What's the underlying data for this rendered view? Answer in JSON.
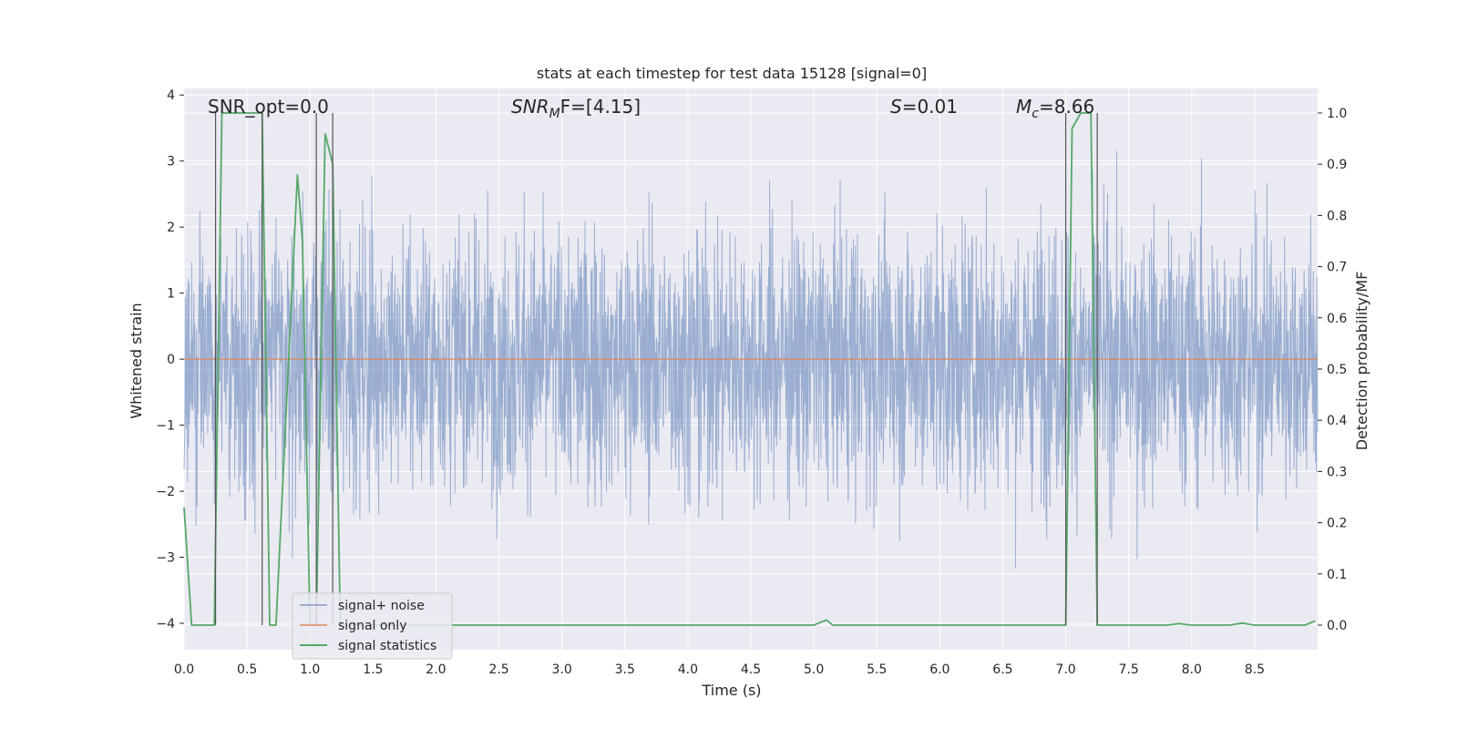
{
  "chart_data": {
    "type": "line",
    "title": "stats at each timestep for test data 15128 [signal=0]",
    "xlabel": "Time (s)",
    "ylabel": "Whitened strain",
    "ylabel_right": "Detection probability/MF",
    "xlim": [
      0.0,
      9.0
    ],
    "ylim": [
      -4.4,
      4.1
    ],
    "ylim_right": [
      -0.048,
      1.048
    ],
    "x_ticks": [
      "0.0",
      "0.5",
      "1.0",
      "1.5",
      "2.0",
      "2.5",
      "3.0",
      "3.5",
      "4.0",
      "4.5",
      "5.0",
      "5.5",
      "6.0",
      "6.5",
      "7.0",
      "7.5",
      "8.0",
      "8.5"
    ],
    "y_ticks": [
      "4",
      "3",
      "2",
      "1",
      "0",
      "−1",
      "−2",
      "−3",
      "−4"
    ],
    "y_ticks_right": [
      "1.0",
      "0.9",
      "0.8",
      "0.7",
      "0.6",
      "0.5",
      "0.4",
      "0.3",
      "0.2",
      "0.1",
      "0.0"
    ],
    "grid": true,
    "legend_position": "lower-left",
    "annotations": [
      {
        "prefix": "SNR_opt=0.0",
        "subscript": "",
        "suffix": ""
      },
      {
        "prefix": "SNR",
        "subscript": "M",
        "suffix": "F=[4.15]"
      },
      {
        "prefix": "S",
        "subscript": "",
        "suffix": "=0.01"
      },
      {
        "prefix": "M",
        "subscript": "c",
        "suffix": "=8.66"
      }
    ],
    "series": [
      {
        "name": "signal+ noise",
        "color": "#4c72b0",
        "kind": "noise",
        "approx_range": [
          -4.0,
          3.8
        ]
      },
      {
        "name": "signal only",
        "color": "#dd8452",
        "kind": "constant",
        "value": 0.0
      },
      {
        "name": "signal statistics",
        "color": "#55a868",
        "axis": "right",
        "x": [
          0.0,
          0.06,
          0.24,
          0.3,
          0.62,
          0.68,
          0.73,
          0.9,
          0.94,
          1.0,
          1.05,
          1.12,
          1.18,
          1.24,
          5.0,
          5.1,
          5.15,
          5.2,
          6.95,
          7.0,
          7.05,
          7.12,
          7.2,
          7.25,
          7.3,
          7.8,
          7.9,
          8.0,
          8.3,
          8.4,
          8.5,
          8.9,
          8.98
        ],
        "y": [
          0.23,
          0.0,
          0.0,
          1.0,
          1.0,
          0.0,
          0.0,
          0.88,
          0.75,
          0.0,
          0.0,
          0.96,
          0.9,
          0.0,
          0.0,
          0.01,
          0.0,
          0.0,
          0.0,
          0.0,
          0.97,
          1.0,
          1.0,
          0.0,
          0.0,
          0.0,
          0.003,
          0.0,
          0.0,
          0.004,
          0.0,
          0.0,
          0.008
        ]
      }
    ],
    "vertical_markers_x": [
      0.25,
      0.62,
      1.05,
      1.18,
      7.0,
      7.25
    ]
  }
}
